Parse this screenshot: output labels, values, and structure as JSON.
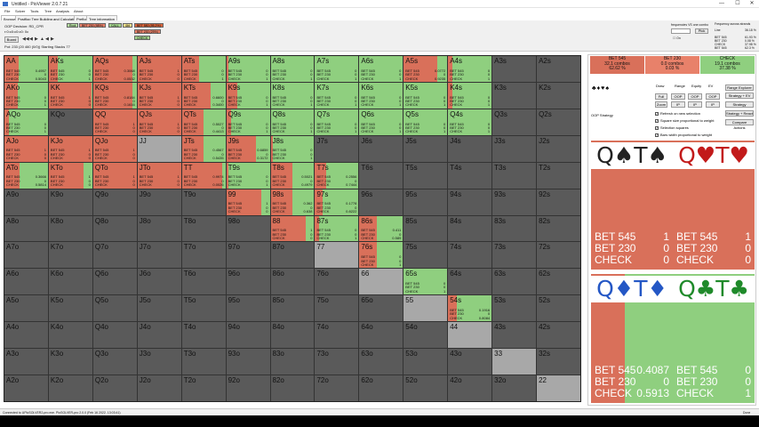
{
  "app": {
    "title": "Untitled - PioViewer 2.0.7.21",
    "controls": [
      "—",
      "☐",
      "✕"
    ]
  },
  "menu": [
    "File",
    "Solver",
    "Tools",
    "Tree",
    "Analysis",
    "About"
  ],
  "tabs": [
    "Browser",
    "Postflop Tree Building and Calculations",
    "Preflop",
    "Tree information"
  ],
  "toolbar": {
    "decision": "OOP Decision: RD_CPR",
    "board": "r:0:c0:c0:c0: 0c",
    "board_btn": "Board",
    "pot": "Pot: 233 (20 460 (0/0)) Starting Stacks 77",
    "nav_icons": [
      "◀◀",
      "◀",
      "▶",
      "▲",
      "◀",
      "▶"
    ],
    "actions": [
      {
        "label": "Root",
        "color": "#b6e0a2"
      },
      {
        "label": "BET 230 (98%)",
        "color": "#e8816a"
      },
      {
        "label": "CALL",
        "color": "#a3d48c"
      },
      {
        "label": "4bt",
        "color": "#f0e08a"
      },
      {
        "label": "BET 580 (95.2%)",
        "color": "#d9653c"
      },
      {
        "label": "BET 230 (29%)",
        "color": "#e8816a"
      },
      {
        "label": "CHECK",
        "color": "#a3d48c"
      }
    ]
  },
  "right_toolbar": {
    "freq_label": "frequencies VS one combo",
    "pick": "Pick",
    "on": "On",
    "freq_title": "Frequency across strands",
    "line": "Line",
    "line_val": "36.18 %",
    "rows": [
      [
        "BET 545",
        "61.93 %"
      ],
      [
        "BET 230",
        "0.08 %"
      ],
      [
        "CHECK",
        "37.98 %"
      ]
    ],
    "rows2": [
      [
        "BET 545",
        "62.3 %"
      ],
      [
        "BET 230",
        "0.11 %"
      ],
      [
        "CHECK",
        "37.57 %"
      ]
    ]
  },
  "colors": {
    "bet545": "#d9705a",
    "bet230": "#e8816a",
    "check": "#8fcf7f"
  },
  "grid": {
    "ranks": [
      "A",
      "K",
      "Q",
      "J",
      "T",
      "9",
      "8",
      "7",
      "6",
      "5",
      "4",
      "3",
      "2"
    ],
    "active": {
      "AA": [
        0.32,
        0,
        0.68,
        [
          "0.4957",
          "0",
          "0.5043"
        ]
      ],
      "AKs": [
        0.2,
        0,
        0.8,
        [
          "0",
          "0",
          "1"
        ]
      ],
      "AQs": [
        0.9,
        0,
        0.1,
        [
          "0.3068",
          "0",
          "0.0532"
        ]
      ],
      "AJs": [
        1,
        0,
        0,
        [
          "1",
          "0",
          "0"
        ]
      ],
      "ATs": [
        0.4,
        0,
        0.6,
        [
          "0",
          "0",
          "1"
        ]
      ],
      "A9s": [
        0.05,
        0,
        0.95,
        [
          "0",
          "0",
          "1"
        ]
      ],
      "A8s": [
        0,
        0,
        1,
        [
          "0",
          "0",
          "1"
        ]
      ],
      "A7s": [
        0,
        0,
        1,
        [
          "0",
          "0",
          "1"
        ]
      ],
      "A6s": [
        0,
        0,
        1,
        [
          "0",
          "0",
          "1"
        ]
      ],
      "A5s": [
        0.77,
        0,
        0.23,
        [
          "0.0772",
          "0",
          "0.9235"
        ]
      ],
      "A4s": [
        0.1,
        0,
        0.9,
        [
          "0",
          "0",
          "1"
        ]
      ],
      "AKo": [
        0.3,
        0,
        0.7,
        [
          "0",
          "0",
          "1"
        ]
      ],
      "KK": [
        0.98,
        0,
        0.02,
        [
          "1",
          "0",
          "0"
        ]
      ],
      "KQs": [
        0.9,
        0,
        0.1,
        [
          "0.8184",
          "0",
          "0.1616"
        ]
      ],
      "KJs": [
        1,
        0,
        0,
        [
          "1",
          "0",
          "0"
        ]
      ],
      "KTs": [
        0.67,
        0,
        0.33,
        [
          "0.6600",
          "0",
          "0.3400"
        ]
      ],
      "K9s": [
        0.25,
        0,
        0.75,
        [
          "0",
          "0",
          "1"
        ]
      ],
      "K8s": [
        0,
        0,
        1,
        [
          "0",
          "0",
          "1"
        ]
      ],
      "K7s": [
        0,
        0,
        1,
        [
          "0",
          "0",
          "1"
        ]
      ],
      "K6s": [
        0,
        0,
        1,
        [
          "0",
          "0",
          "1"
        ]
      ],
      "K5s": [
        0,
        0,
        1,
        [
          "0",
          "0",
          "1"
        ]
      ],
      "K4s": [
        0.1,
        0,
        0.9,
        [
          "0",
          "0",
          "1"
        ]
      ],
      "AQo": [
        0.1,
        0,
        0.9,
        [
          "0",
          "0",
          "1"
        ]
      ],
      "QQ": [
        1,
        0,
        0,
        [
          "1",
          "0",
          "0"
        ]
      ],
      "QJs": [
        1,
        0,
        0,
        [
          "1",
          "0",
          "0"
        ]
      ],
      "QTs": [
        0.5,
        0,
        0.5,
        [
          "0.5027",
          "0",
          "0.4413"
        ]
      ],
      "Q9s": [
        0.1,
        0,
        0.9,
        [
          "0",
          "0",
          "1"
        ]
      ],
      "Q8s": [
        0,
        0,
        1,
        [
          "0",
          "0",
          "1"
        ]
      ],
      "Q7s": [
        0,
        0,
        1,
        [
          "0",
          "0",
          "1"
        ]
      ],
      "Q6s": [
        0,
        0,
        1,
        [
          "0",
          "0",
          "1"
        ]
      ],
      "Q5s": [
        0,
        0,
        1,
        [
          "0",
          "0",
          "1"
        ]
      ],
      "Q4s": [
        0,
        0,
        1,
        [
          "0",
          "0",
          "1"
        ]
      ],
      "AJo": [
        1,
        0,
        0,
        [
          "1",
          "0",
          "0"
        ]
      ],
      "KJo": [
        1,
        0,
        0,
        [
          "1",
          "0",
          "0"
        ]
      ],
      "QJo": [
        1,
        0,
        0,
        [
          "1",
          "0",
          "0"
        ]
      ],
      "JTs": [
        0.5,
        0,
        0.5,
        [
          "0.4567",
          "0",
          "0.5435"
        ]
      ],
      "J9s": [
        0.68,
        0,
        0.32,
        [
          "0.6859",
          "0",
          "0.3172"
        ]
      ],
      "J8s": [
        0.05,
        0,
        0.95,
        [
          "0",
          "0",
          "1"
        ]
      ],
      "ATo": [
        0.34,
        0,
        0.66,
        [
          "0.3666",
          "0",
          "0.5814"
        ]
      ],
      "KTo": [
        0.8,
        0,
        0.2,
        [
          "1",
          "0",
          "0"
        ]
      ],
      "QTo": [
        1,
        0,
        0,
        [
          "1",
          "0",
          "0"
        ]
      ],
      "JTo": [
        1,
        0,
        0,
        [
          "1",
          "0",
          "0"
        ]
      ],
      "TT": [
        0.93,
        0,
        0.07,
        [
          "0.9974",
          "0",
          "0.0026"
        ]
      ],
      "T9s": [
        0.05,
        0,
        0.95,
        [
          "0",
          "0",
          "1"
        ]
      ],
      "T8s": [
        0.5,
        0,
        0.5,
        [
          "0.5021",
          "0",
          "0.4979"
        ]
      ],
      "T7s": [
        0.25,
        0,
        0.75,
        [
          "0.2556",
          "0",
          "0.7444"
        ]
      ],
      "99": [
        0.8,
        0,
        0.2,
        [
          "1",
          "0",
          "0"
        ]
      ],
      "98s": [
        0.5,
        0,
        0.5,
        [
          "0.362",
          "0",
          "0.638"
        ]
      ],
      "97s": [
        0.18,
        0,
        0.82,
        [
          "0.1778",
          "0",
          "0.8222"
        ]
      ],
      "88": [
        0.8,
        0,
        0.2,
        [
          "1",
          "0",
          "0"
        ]
      ],
      "87s": [
        0.1,
        0,
        0.9,
        [
          "0",
          "0",
          "1"
        ]
      ],
      "86s": [
        0.4,
        0,
        0.6,
        [
          "0.411",
          "0",
          "0.589"
        ]
      ],
      "76s": [
        0.4,
        0,
        0.6,
        [
          "0",
          "0",
          "1"
        ]
      ],
      "65s": [
        0,
        0,
        1,
        [
          "0",
          "0",
          "1"
        ]
      ],
      "54s": [
        0.2,
        0,
        0.8,
        [
          "0.1916",
          "0",
          "0.8084"
        ]
      ]
    },
    "highlight": [
      "JJ",
      "77",
      "66",
      "55",
      "44",
      "33",
      "22"
    ],
    "action_labels": [
      "BET 545",
      "BET 230",
      "CHECK"
    ]
  },
  "panel": {
    "summary": [
      {
        "label": "BET 545",
        "combos": "32.1 combos",
        "pct": "62.62 %",
        "color": "#d9705a"
      },
      {
        "label": "BET 230",
        "combos": "0.0 combos",
        "pct": "0.03 %",
        "color": "#e8816a"
      },
      {
        "label": "CHECK",
        "combos": "19.1 combos",
        "pct": "37.38 %",
        "color": "#8fcf7f"
      }
    ],
    "suits": "♣♦♥♠",
    "tabs": [
      "Draw",
      "Range",
      "Equity",
      "EV"
    ],
    "buttons_row1": [
      "Full",
      "OOP",
      "OOP",
      "OOP"
    ],
    "buttons_row2": [
      "Zoom",
      "IP",
      "IP",
      "IP"
    ],
    "side_buttons": [
      "Range Explorer",
      "Strategy + EV",
      "Strategy",
      "Strategy + React",
      "Compare Actions"
    ],
    "oop_strategy": "OOP Strategy",
    "checks": [
      "Refresh on new selection",
      "Square size proportional to weight",
      "Selection squares",
      "Bars width proportional to weight"
    ],
    "combos": [
      {
        "cards": [
          "Q♠",
          "T♠"
        ],
        "color": "#222",
        "fills": [
          1,
          0,
          0
        ],
        "vals": [
          "1",
          "0",
          "0"
        ]
      },
      {
        "cards": [
          "Q♥",
          "T♥"
        ],
        "color": "#c21a1a",
        "fills": [
          1,
          0,
          0
        ],
        "vals": [
          "1",
          "0",
          "0"
        ]
      },
      {
        "cards": [
          "Q♦",
          "T♦"
        ],
        "color": "#2457c5",
        "fills": [
          0.41,
          0,
          0.59
        ],
        "vals": [
          "0.4087",
          "0",
          "0.5913"
        ]
      },
      {
        "cards": [
          "Q♣",
          "T♣"
        ],
        "color": "#1f8a2a",
        "fills": [
          0,
          0,
          1
        ],
        "vals": [
          "0",
          "0",
          "1"
        ]
      }
    ]
  },
  "status": {
    "left": "Connected to UPioSOLVER2-pro.exe. PioSOLVER-pro 2.0.0 (Feb 16 2022, 13:03:41)",
    "right": "Done"
  }
}
